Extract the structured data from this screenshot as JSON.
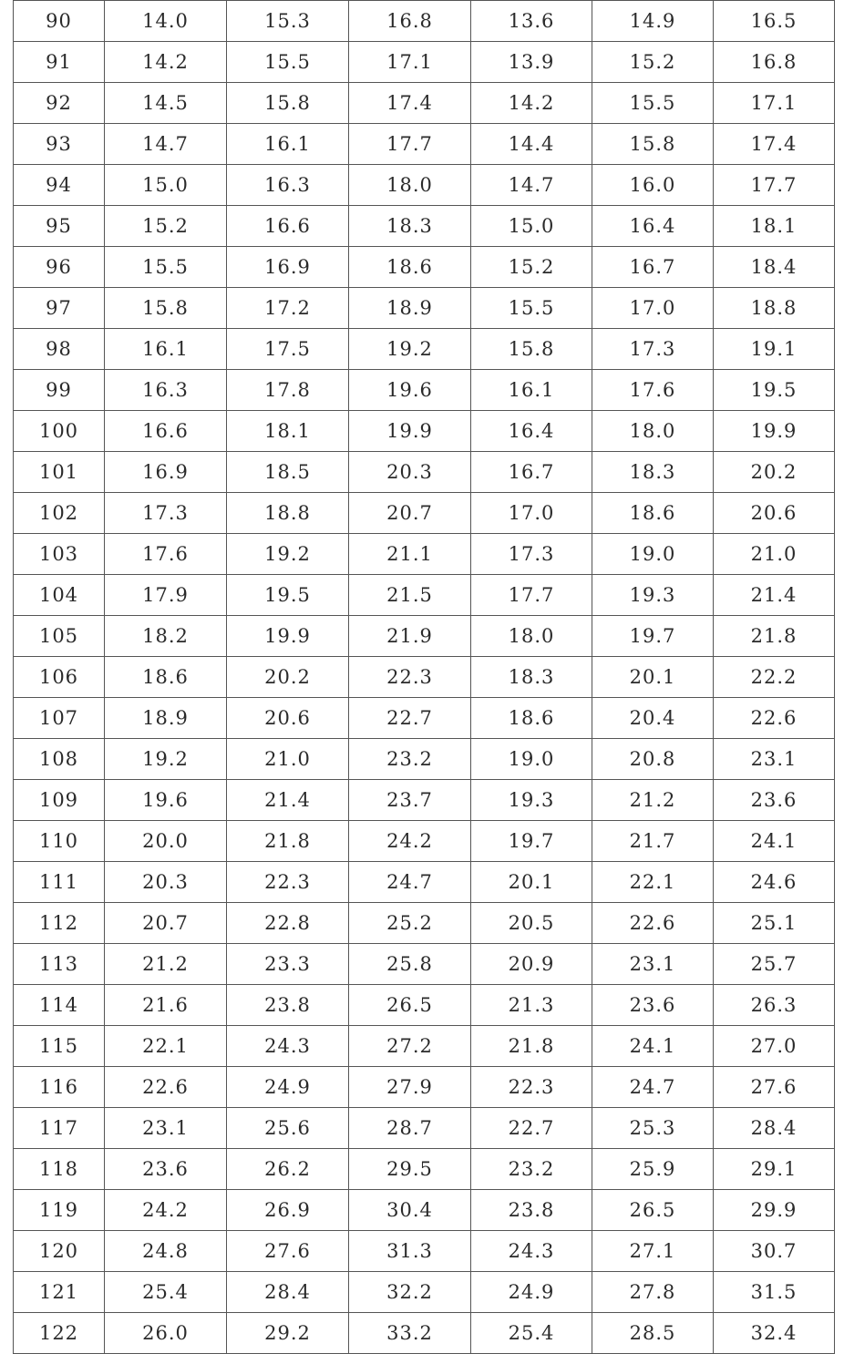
{
  "table": {
    "rows": [
      [
        "90",
        "14.0",
        "15.3",
        "16.8",
        "13.6",
        "14.9",
        "16.5"
      ],
      [
        "91",
        "14.2",
        "15.5",
        "17.1",
        "13.9",
        "15.2",
        "16.8"
      ],
      [
        "92",
        "14.5",
        "15.8",
        "17.4",
        "14.2",
        "15.5",
        "17.1"
      ],
      [
        "93",
        "14.7",
        "16.1",
        "17.7",
        "14.4",
        "15.8",
        "17.4"
      ],
      [
        "94",
        "15.0",
        "16.3",
        "18.0",
        "14.7",
        "16.0",
        "17.7"
      ],
      [
        "95",
        "15.2",
        "16.6",
        "18.3",
        "15.0",
        "16.4",
        "18.1"
      ],
      [
        "96",
        "15.5",
        "16.9",
        "18.6",
        "15.2",
        "16.7",
        "18.4"
      ],
      [
        "97",
        "15.8",
        "17.2",
        "18.9",
        "15.5",
        "17.0",
        "18.8"
      ],
      [
        "98",
        "16.1",
        "17.5",
        "19.2",
        "15.8",
        "17.3",
        "19.1"
      ],
      [
        "99",
        "16.3",
        "17.8",
        "19.6",
        "16.1",
        "17.6",
        "19.5"
      ],
      [
        "100",
        "16.6",
        "18.1",
        "19.9",
        "16.4",
        "18.0",
        "19.9"
      ],
      [
        "101",
        "16.9",
        "18.5",
        "20.3",
        "16.7",
        "18.3",
        "20.2"
      ],
      [
        "102",
        "17.3",
        "18.8",
        "20.7",
        "17.0",
        "18.6",
        "20.6"
      ],
      [
        "103",
        "17.6",
        "19.2",
        "21.1",
        "17.3",
        "19.0",
        "21.0"
      ],
      [
        "104",
        "17.9",
        "19.5",
        "21.5",
        "17.7",
        "19.3",
        "21.4"
      ],
      [
        "105",
        "18.2",
        "19.9",
        "21.9",
        "18.0",
        "19.7",
        "21.8"
      ],
      [
        "106",
        "18.6",
        "20.2",
        "22.3",
        "18.3",
        "20.1",
        "22.2"
      ],
      [
        "107",
        "18.9",
        "20.6",
        "22.7",
        "18.6",
        "20.4",
        "22.6"
      ],
      [
        "108",
        "19.2",
        "21.0",
        "23.2",
        "19.0",
        "20.8",
        "23.1"
      ],
      [
        "109",
        "19.6",
        "21.4",
        "23.7",
        "19.3",
        "21.2",
        "23.6"
      ],
      [
        "110",
        "20.0",
        "21.8",
        "24.2",
        "19.7",
        "21.7",
        "24.1"
      ],
      [
        "111",
        "20.3",
        "22.3",
        "24.7",
        "20.1",
        "22.1",
        "24.6"
      ],
      [
        "112",
        "20.7",
        "22.8",
        "25.2",
        "20.5",
        "22.6",
        "25.1"
      ],
      [
        "113",
        "21.2",
        "23.3",
        "25.8",
        "20.9",
        "23.1",
        "25.7"
      ],
      [
        "114",
        "21.6",
        "23.8",
        "26.5",
        "21.3",
        "23.6",
        "26.3"
      ],
      [
        "115",
        "22.1",
        "24.3",
        "27.2",
        "21.8",
        "24.1",
        "27.0"
      ],
      [
        "116",
        "22.6",
        "24.9",
        "27.9",
        "22.3",
        "24.7",
        "27.6"
      ],
      [
        "117",
        "23.1",
        "25.6",
        "28.7",
        "22.7",
        "25.3",
        "28.4"
      ],
      [
        "118",
        "23.6",
        "26.2",
        "29.5",
        "23.2",
        "25.9",
        "29.1"
      ],
      [
        "119",
        "24.2",
        "26.9",
        "30.4",
        "23.8",
        "26.5",
        "29.9"
      ],
      [
        "120",
        "24.8",
        "27.6",
        "31.3",
        "24.3",
        "27.1",
        "30.7"
      ],
      [
        "121",
        "25.4",
        "28.4",
        "32.2",
        "24.9",
        "27.8",
        "31.5"
      ],
      [
        "122",
        "26.0",
        "29.2",
        "33.2",
        "25.4",
        "28.5",
        "32.4"
      ]
    ]
  }
}
